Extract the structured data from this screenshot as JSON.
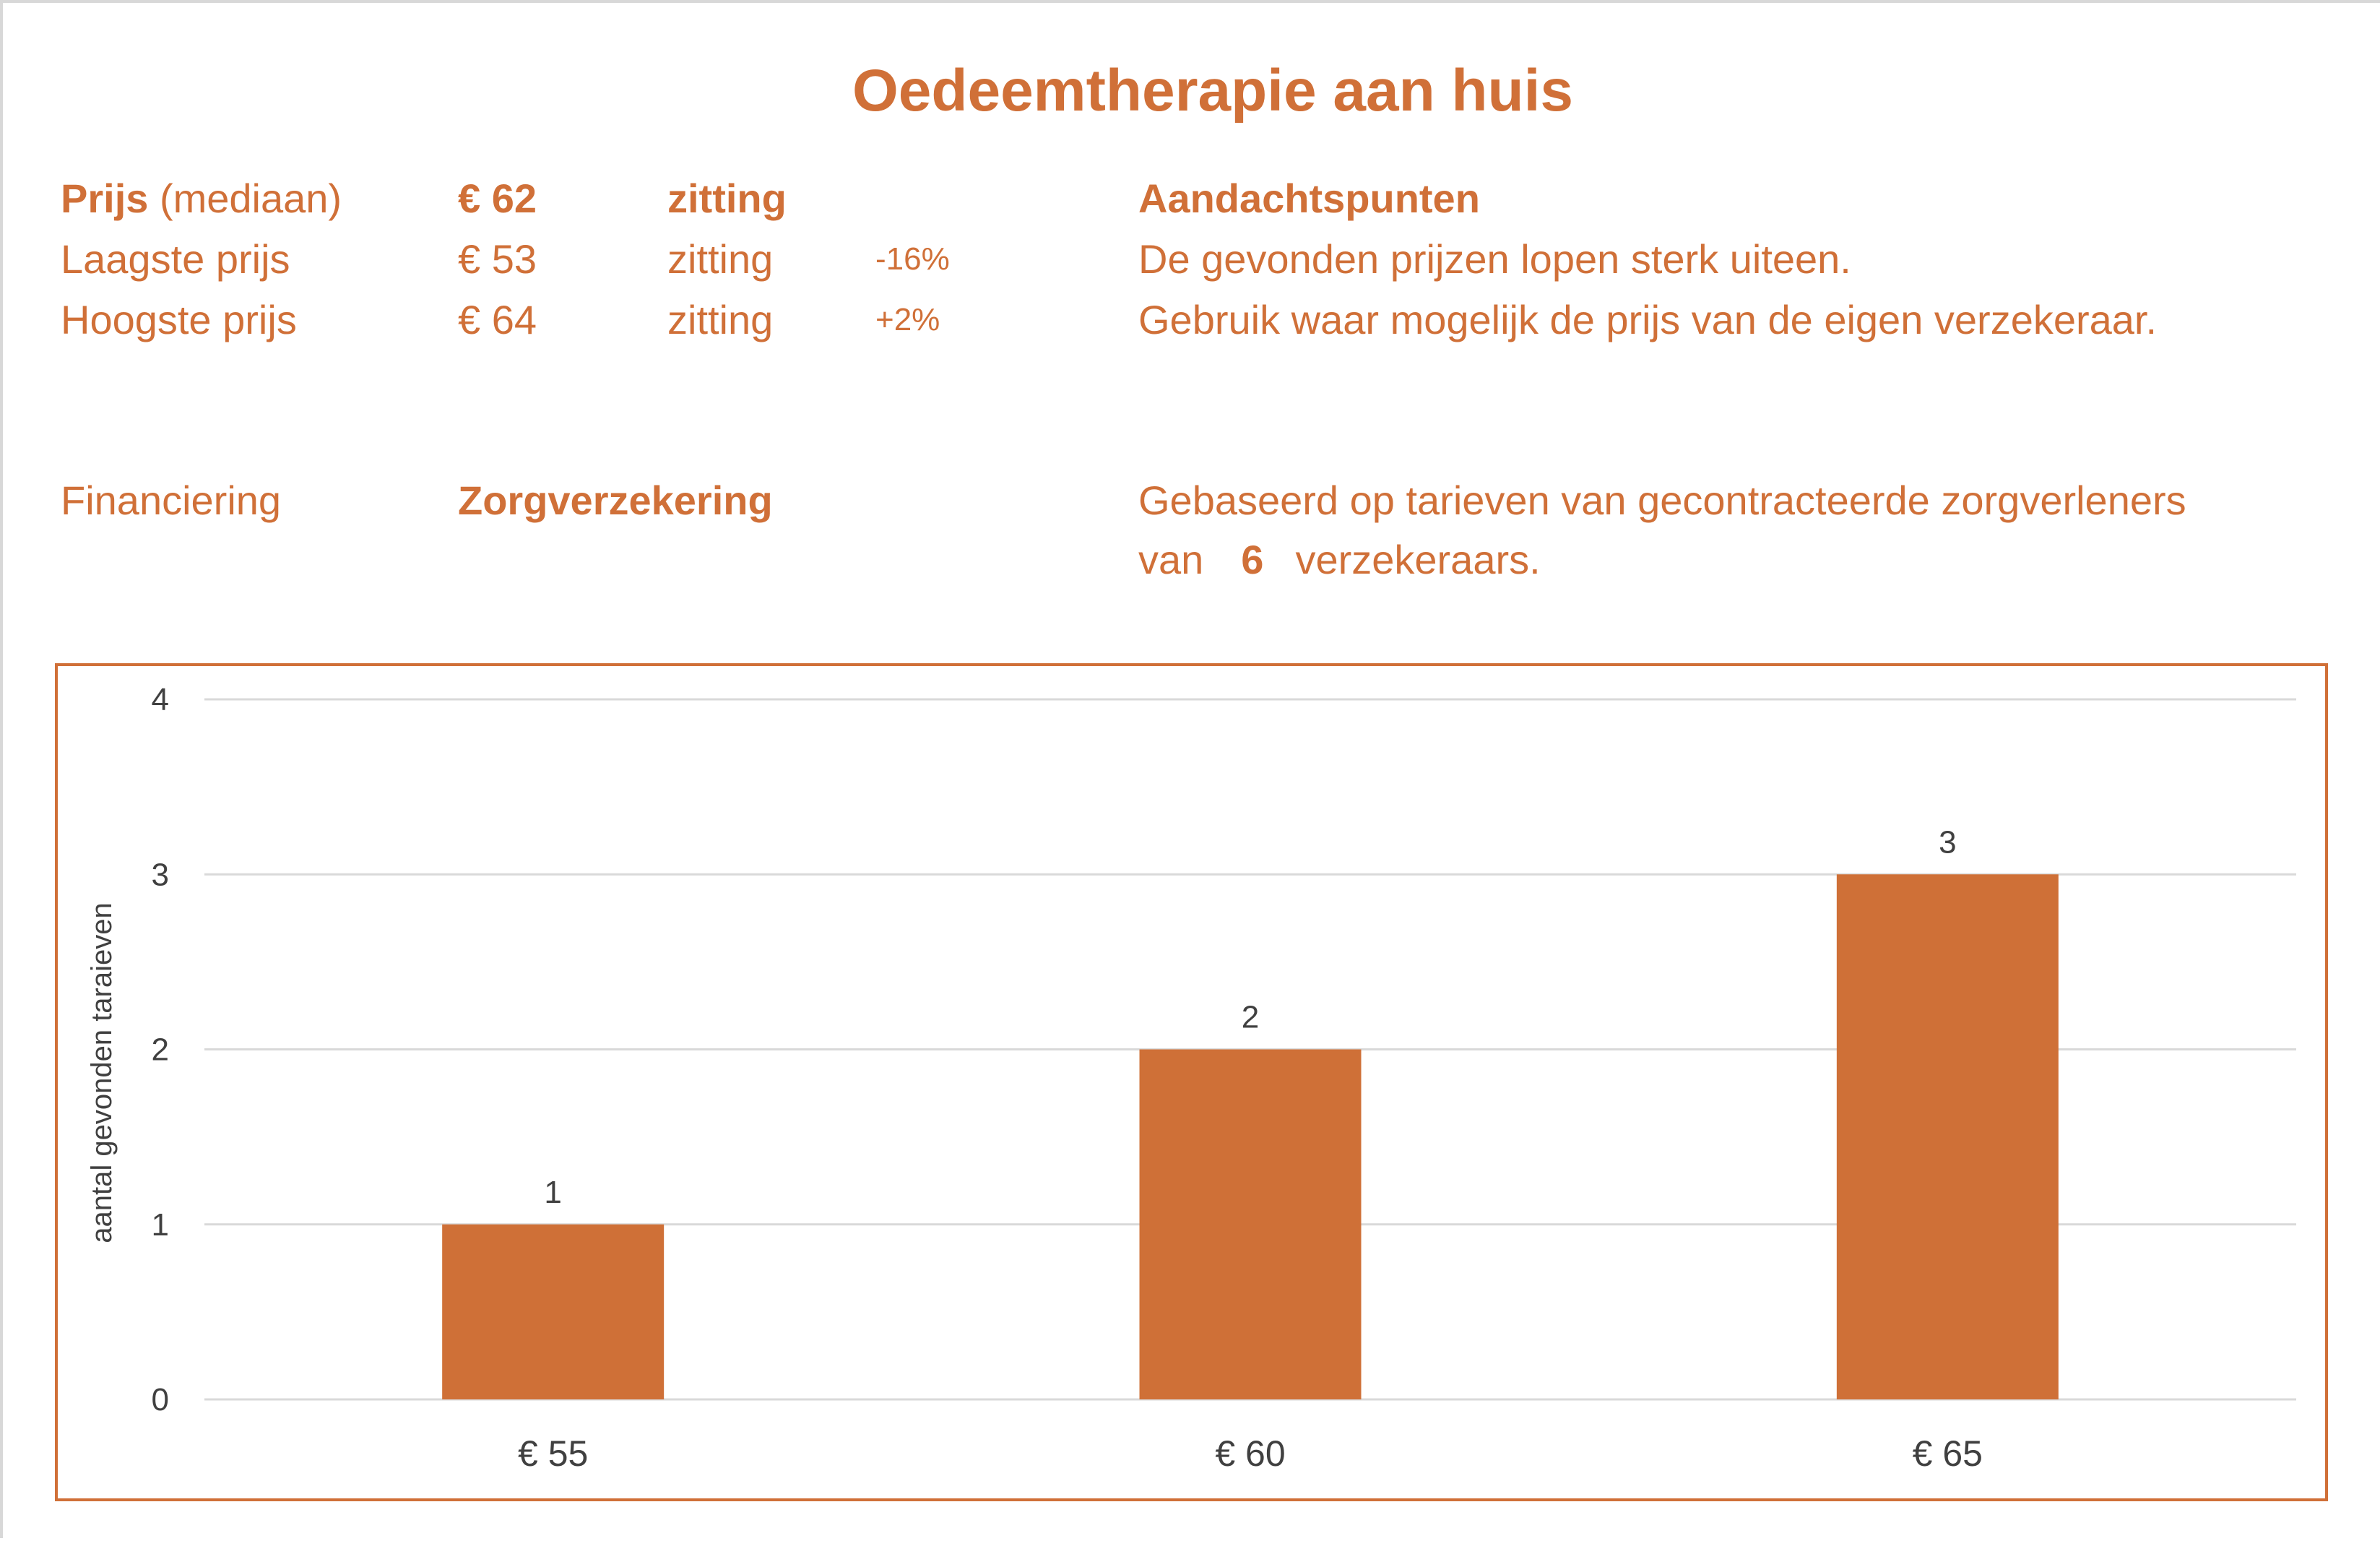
{
  "title": "Oedeemtherapie aan huis",
  "prices": {
    "median": {
      "label_bold": "Prijs",
      "label_rest": "(mediaan)",
      "value": "€ 62",
      "unit": "zitting"
    },
    "lowest": {
      "label": "Laagste prijs",
      "value": "€ 53",
      "unit": "zitting",
      "diff": "-16%"
    },
    "highest": {
      "label": "Hoogste prijs",
      "value": "€ 64",
      "unit": "zitting",
      "diff": "+2%"
    }
  },
  "notes": {
    "heading": "Aandachtspunten",
    "line1": "De gevonden prijzen lopen sterk uiteen.",
    "line2": "Gebruik waar mogelijk de prijs van de eigen verzekeraar."
  },
  "financing": {
    "label": "Financiering",
    "value": "Zorgverzekering",
    "basis_line1": "Gebaseerd op tarieven van gecontracteerde zorgverleners",
    "basis_van": "van",
    "insurer_count": "6",
    "basis_end": "verzekeraars."
  },
  "colors": {
    "accent": "#D07038",
    "bar": "#CF7037",
    "grid": "#D9D9D9",
    "axis_text": "#404040"
  },
  "chart_data": {
    "type": "bar",
    "categories": [
      "€ 55",
      "€ 60",
      "€ 65"
    ],
    "values": [
      1,
      2,
      3
    ],
    "data_labels": [
      "1",
      "2",
      "3"
    ],
    "title": "",
    "xlabel": "",
    "ylabel": "aantal gevonden taraieven",
    "ylim": [
      0,
      4
    ],
    "yticks": [
      "0",
      "1",
      "2",
      "3",
      "4"
    ],
    "grid": true,
    "legend": "none"
  }
}
